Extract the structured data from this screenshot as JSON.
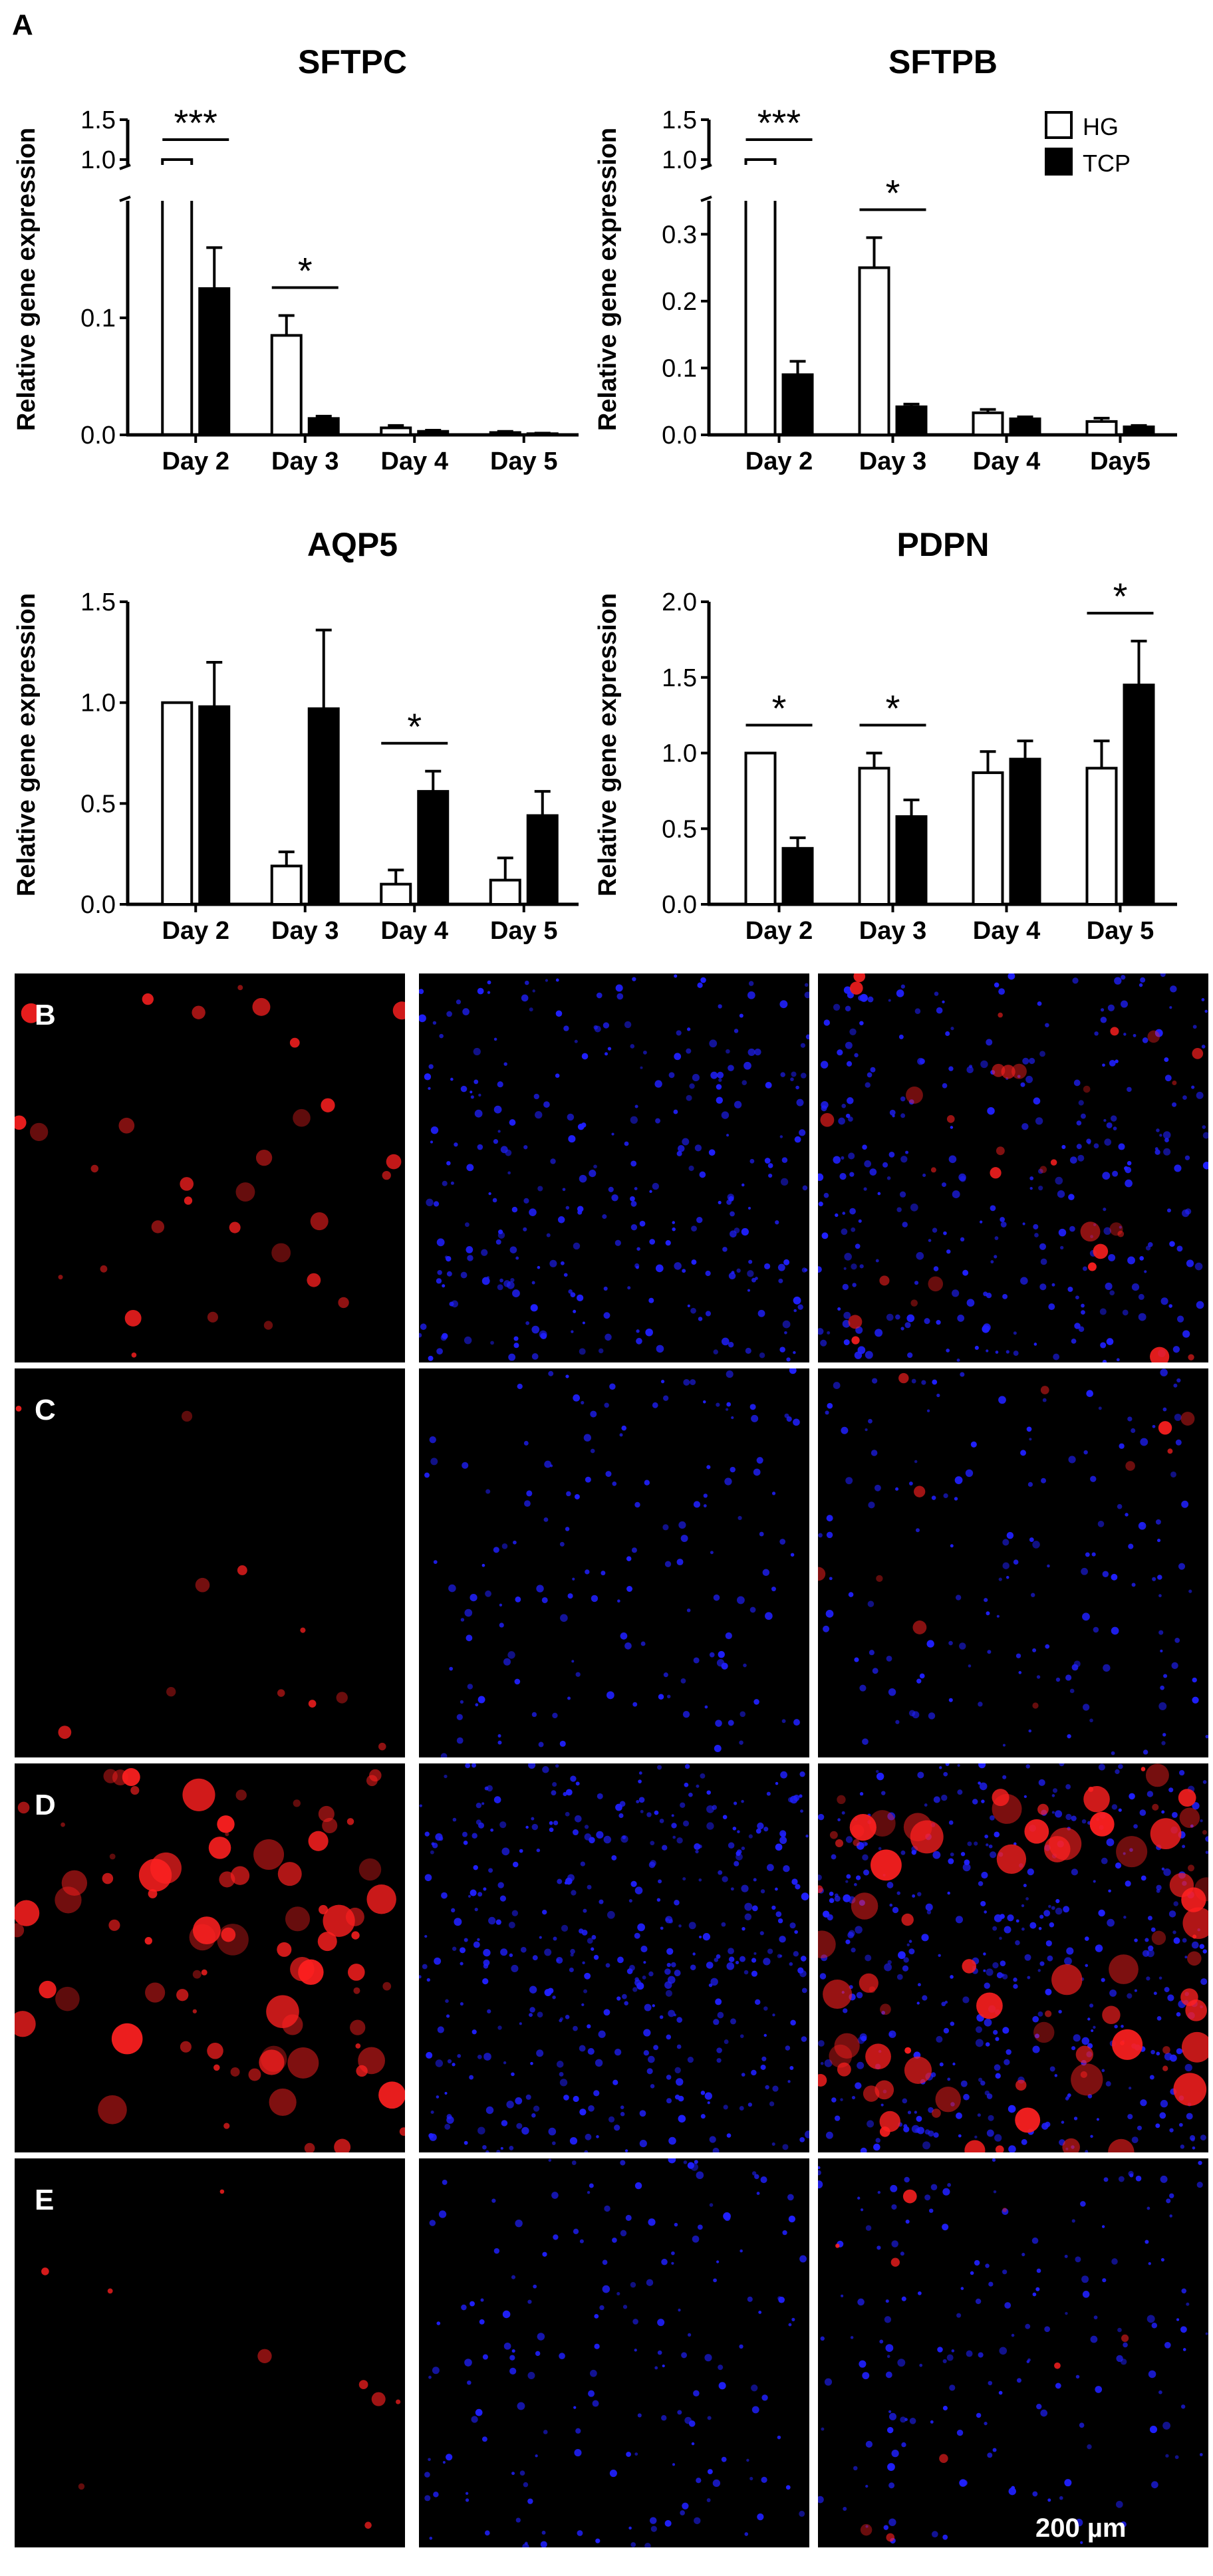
{
  "figure": {
    "panel_a_label": "A"
  },
  "legend": {
    "entries": [
      "HG",
      "TCP"
    ],
    "colors": {
      "HG": "#ffffff",
      "TCP": "#000000"
    }
  },
  "chart_data": [
    {
      "type": "bar",
      "title": "SFTPC",
      "ylabel": "Relative gene expression",
      "categories": [
        "Day 2",
        "Day 3",
        "Day 4",
        "Day 5"
      ],
      "series": [
        {
          "name": "HG",
          "values": [
            1.0,
            0.085,
            0.006,
            0.002
          ],
          "errors": [
            0.0,
            0.017,
            0.002,
            0.001
          ]
        },
        {
          "name": "TCP",
          "values": [
            0.125,
            0.014,
            0.003,
            0.001
          ],
          "errors": [
            0.035,
            0.002,
            0.001,
            0.0005
          ]
        }
      ],
      "broken_axis": true,
      "yticks_lower": [
        "0.0",
        "0.1"
      ],
      "yticks_upper": [
        "1.0",
        "1.5"
      ],
      "ylim_lower": [
        0,
        0.2
      ],
      "ylim_upper": [
        1.0,
        1.5
      ],
      "significance": [
        {
          "category": "Day 2",
          "label": "***"
        },
        {
          "category": "Day 3",
          "label": "*"
        }
      ]
    },
    {
      "type": "bar",
      "title": "SFTPB",
      "ylabel": "Relative gene expression",
      "categories": [
        "Day 2",
        "Day 3",
        "Day 4",
        "Day5"
      ],
      "series": [
        {
          "name": "HG",
          "values": [
            1.0,
            0.25,
            0.033,
            0.02
          ],
          "errors": [
            0.0,
            0.045,
            0.005,
            0.005
          ]
        },
        {
          "name": "TCP",
          "values": [
            0.09,
            0.042,
            0.024,
            0.012
          ],
          "errors": [
            0.02,
            0.004,
            0.003,
            0.002
          ]
        }
      ],
      "broken_axis": true,
      "yticks_lower": [
        "0.0",
        "0.1",
        "0.2",
        "0.3"
      ],
      "yticks_upper": [
        "1.0",
        "1.5"
      ],
      "ylim_lower": [
        0,
        0.35
      ],
      "ylim_upper": [
        1.0,
        1.5
      ],
      "legend": "top-right",
      "significance": [
        {
          "category": "Day 2",
          "label": "***"
        },
        {
          "category": "Day 3",
          "label": "*"
        }
      ]
    },
    {
      "type": "bar",
      "title": "AQP5",
      "ylabel": "Relative gene expression",
      "categories": [
        "Day 2",
        "Day 3",
        "Day 4",
        "Day 5"
      ],
      "series": [
        {
          "name": "HG",
          "values": [
            1.0,
            0.19,
            0.1,
            0.12
          ],
          "errors": [
            0.0,
            0.07,
            0.07,
            0.11
          ]
        },
        {
          "name": "TCP",
          "values": [
            0.98,
            0.97,
            0.56,
            0.44
          ],
          "errors": [
            0.22,
            0.39,
            0.1,
            0.12
          ]
        }
      ],
      "yticks": [
        "0.0",
        "0.5",
        "1.0",
        "1.5"
      ],
      "ylim": [
        0,
        1.5
      ],
      "significance": [
        {
          "category": "Day 4",
          "label": "*"
        }
      ]
    },
    {
      "type": "bar",
      "title": "PDPN",
      "ylabel": "Relative gene expression",
      "categories": [
        "Day 2",
        "Day 3",
        "Day 4",
        "Day 5"
      ],
      "series": [
        {
          "name": "HG",
          "values": [
            1.0,
            0.9,
            0.87,
            0.9
          ],
          "errors": [
            0.0,
            0.1,
            0.14,
            0.18
          ]
        },
        {
          "name": "TCP",
          "values": [
            0.37,
            0.58,
            0.96,
            1.45
          ],
          "errors": [
            0.07,
            0.11,
            0.12,
            0.29
          ]
        }
      ],
      "yticks": [
        "0.0",
        "0.5",
        "1.0",
        "1.5",
        "2.0"
      ],
      "ylim": [
        0,
        2.0
      ],
      "significance": [
        {
          "category": "Day 2",
          "label": "*"
        },
        {
          "category": "Day 3",
          "label": "*"
        },
        {
          "category": "Day 5",
          "label": "*"
        }
      ]
    }
  ],
  "micrographs": {
    "rows": [
      {
        "label": "B",
        "red": 0.35,
        "blue": 0.7,
        "seed": 11
      },
      {
        "label": "C",
        "red": 0.12,
        "blue": 0.35,
        "seed": 23
      },
      {
        "label": "D",
        "red": 0.9,
        "blue": 1.0,
        "seed": 37
      },
      {
        "label": "E",
        "red": 0.1,
        "blue": 0.4,
        "seed": 51
      }
    ],
    "scale_bar": "200 µm",
    "colors": {
      "red": "#ff2020",
      "blue": "#2020ff",
      "background": "#000000"
    }
  }
}
